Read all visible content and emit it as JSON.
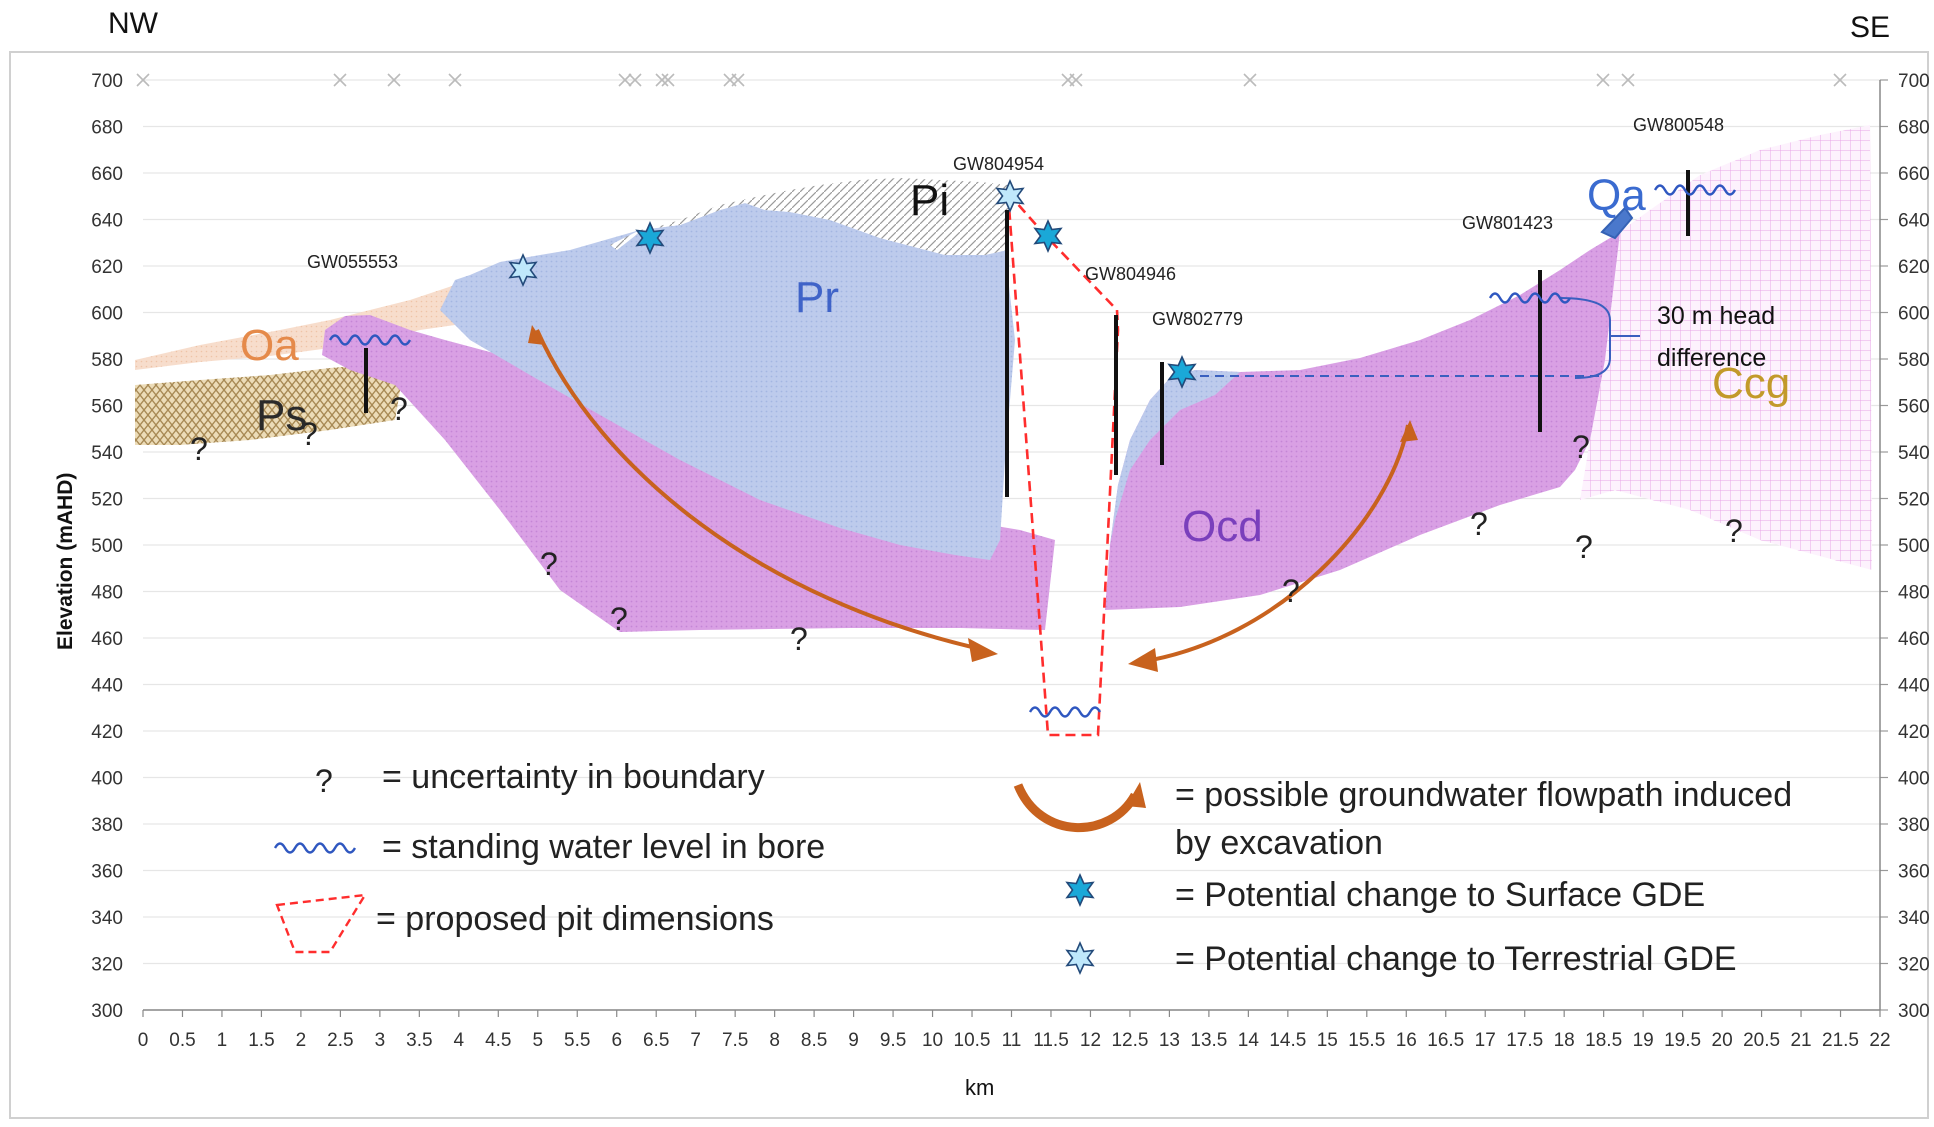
{
  "header": {
    "left": "NW",
    "right": "SE"
  },
  "axes": {
    "ylabel": "Elevation (mAHD)",
    "xlabel": "km",
    "y_ticks": [
      "700",
      "680",
      "660",
      "640",
      "620",
      "600",
      "580",
      "560",
      "540",
      "520",
      "500",
      "480",
      "460",
      "440",
      "420",
      "400",
      "380",
      "360",
      "340",
      "320",
      "300"
    ],
    "x_ticks": [
      "0",
      "0.5",
      "1",
      "1.5",
      "2",
      "2.5",
      "3",
      "3.5",
      "4",
      "4.5",
      "5",
      "5.5",
      "6",
      "6.5",
      "7",
      "7.5",
      "8",
      "8.5",
      "9",
      "9.5",
      "10",
      "10.5",
      "11",
      "11.5",
      "12",
      "12.5",
      "13",
      "13.5",
      "14",
      "14.5",
      "15",
      "15.5",
      "16",
      "16.5",
      "17",
      "17.5",
      "18",
      "18.5",
      "19",
      "19.5",
      "20",
      "20.5",
      "21",
      "21.5",
      "22"
    ]
  },
  "units": {
    "oa": "Oa",
    "ps": "Ps",
    "pr": "Pr",
    "pi": "Pi",
    "ocd": "Ocd",
    "qa": "Qa",
    "ccg": "Ccg"
  },
  "bores": {
    "gw055553": "GW055553",
    "gw804954": "GW804954",
    "gw804946": "GW804946",
    "gw802779": "GW802779",
    "gw801423": "GW801423",
    "gw800548": "GW800548"
  },
  "uncertainty_mark": "?",
  "head_note": {
    "line1": "30 m head",
    "line2": "difference"
  },
  "legend": {
    "uncertainty": "= uncertainty in boundary",
    "water_level": "= standing water level in bore",
    "pit": "= proposed pit dimensions",
    "flowpath_line1": "= possible groundwater flowpath induced",
    "flowpath_line2": "by excavation",
    "surface_gde": "= Potential change to Surface GDE",
    "terrestrial_gde": "= Potential change to Terrestrial GDE",
    "mark": "?"
  },
  "colors": {
    "pink": "#d89be3",
    "blue": "#b9c8ea",
    "oa": "#f6d8c4",
    "ps": "#d6c29a",
    "ccg": "#f3c8f1",
    "arrow": "#c8621e",
    "pit": "#ff2d2d",
    "water": "#2f57c0",
    "star_surface": "#1aa8d8",
    "star_terrestrial": "#bfe8fb"
  }
}
